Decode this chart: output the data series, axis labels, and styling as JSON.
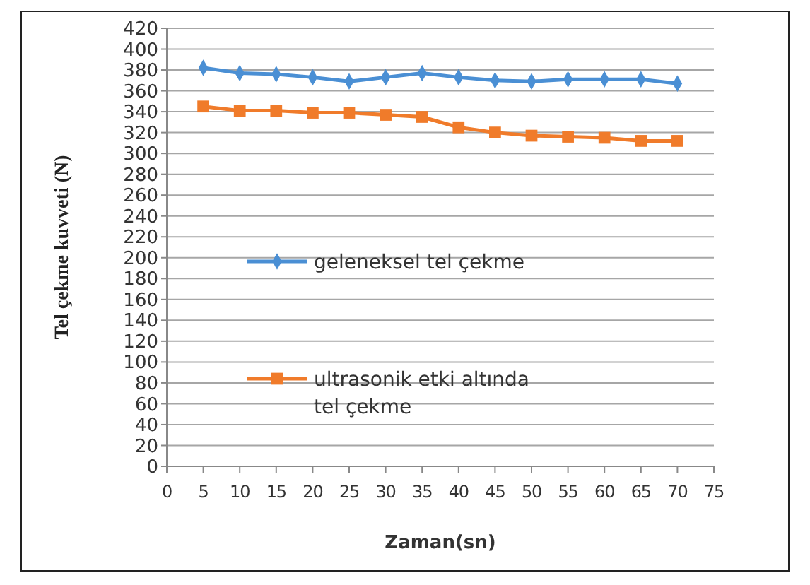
{
  "chart_data": {
    "type": "line",
    "xlabel": "Zaman(sn)",
    "ylabel": "Tel çekme kuvveti  (N)",
    "x": [
      5,
      10,
      15,
      20,
      25,
      30,
      35,
      40,
      45,
      50,
      55,
      60,
      65,
      70
    ],
    "xlim": [
      0,
      75
    ],
    "xticks": [
      0,
      5,
      10,
      15,
      20,
      25,
      30,
      35,
      40,
      45,
      50,
      55,
      60,
      65,
      70,
      75
    ],
    "ylim": [
      0,
      420
    ],
    "yticks": [
      0,
      20,
      40,
      60,
      80,
      100,
      120,
      140,
      160,
      180,
      200,
      220,
      240,
      260,
      280,
      300,
      320,
      340,
      360,
      380,
      400,
      420
    ],
    "grid": "y",
    "legend": "left",
    "series": [
      {
        "name": "geleneksel tel çekme",
        "color": "#4a8fd4",
        "marker": "diamond",
        "values": [
          382,
          377,
          376,
          373,
          369,
          373,
          377,
          373,
          370,
          369,
          371,
          371,
          371,
          367
        ]
      },
      {
        "name": "ultrasonik etki altında tel çekme",
        "color": "#f07b2a",
        "marker": "square",
        "values": [
          345,
          341,
          341,
          339,
          339,
          337,
          335,
          325,
          320,
          317,
          316,
          315,
          312,
          312
        ]
      }
    ]
  }
}
